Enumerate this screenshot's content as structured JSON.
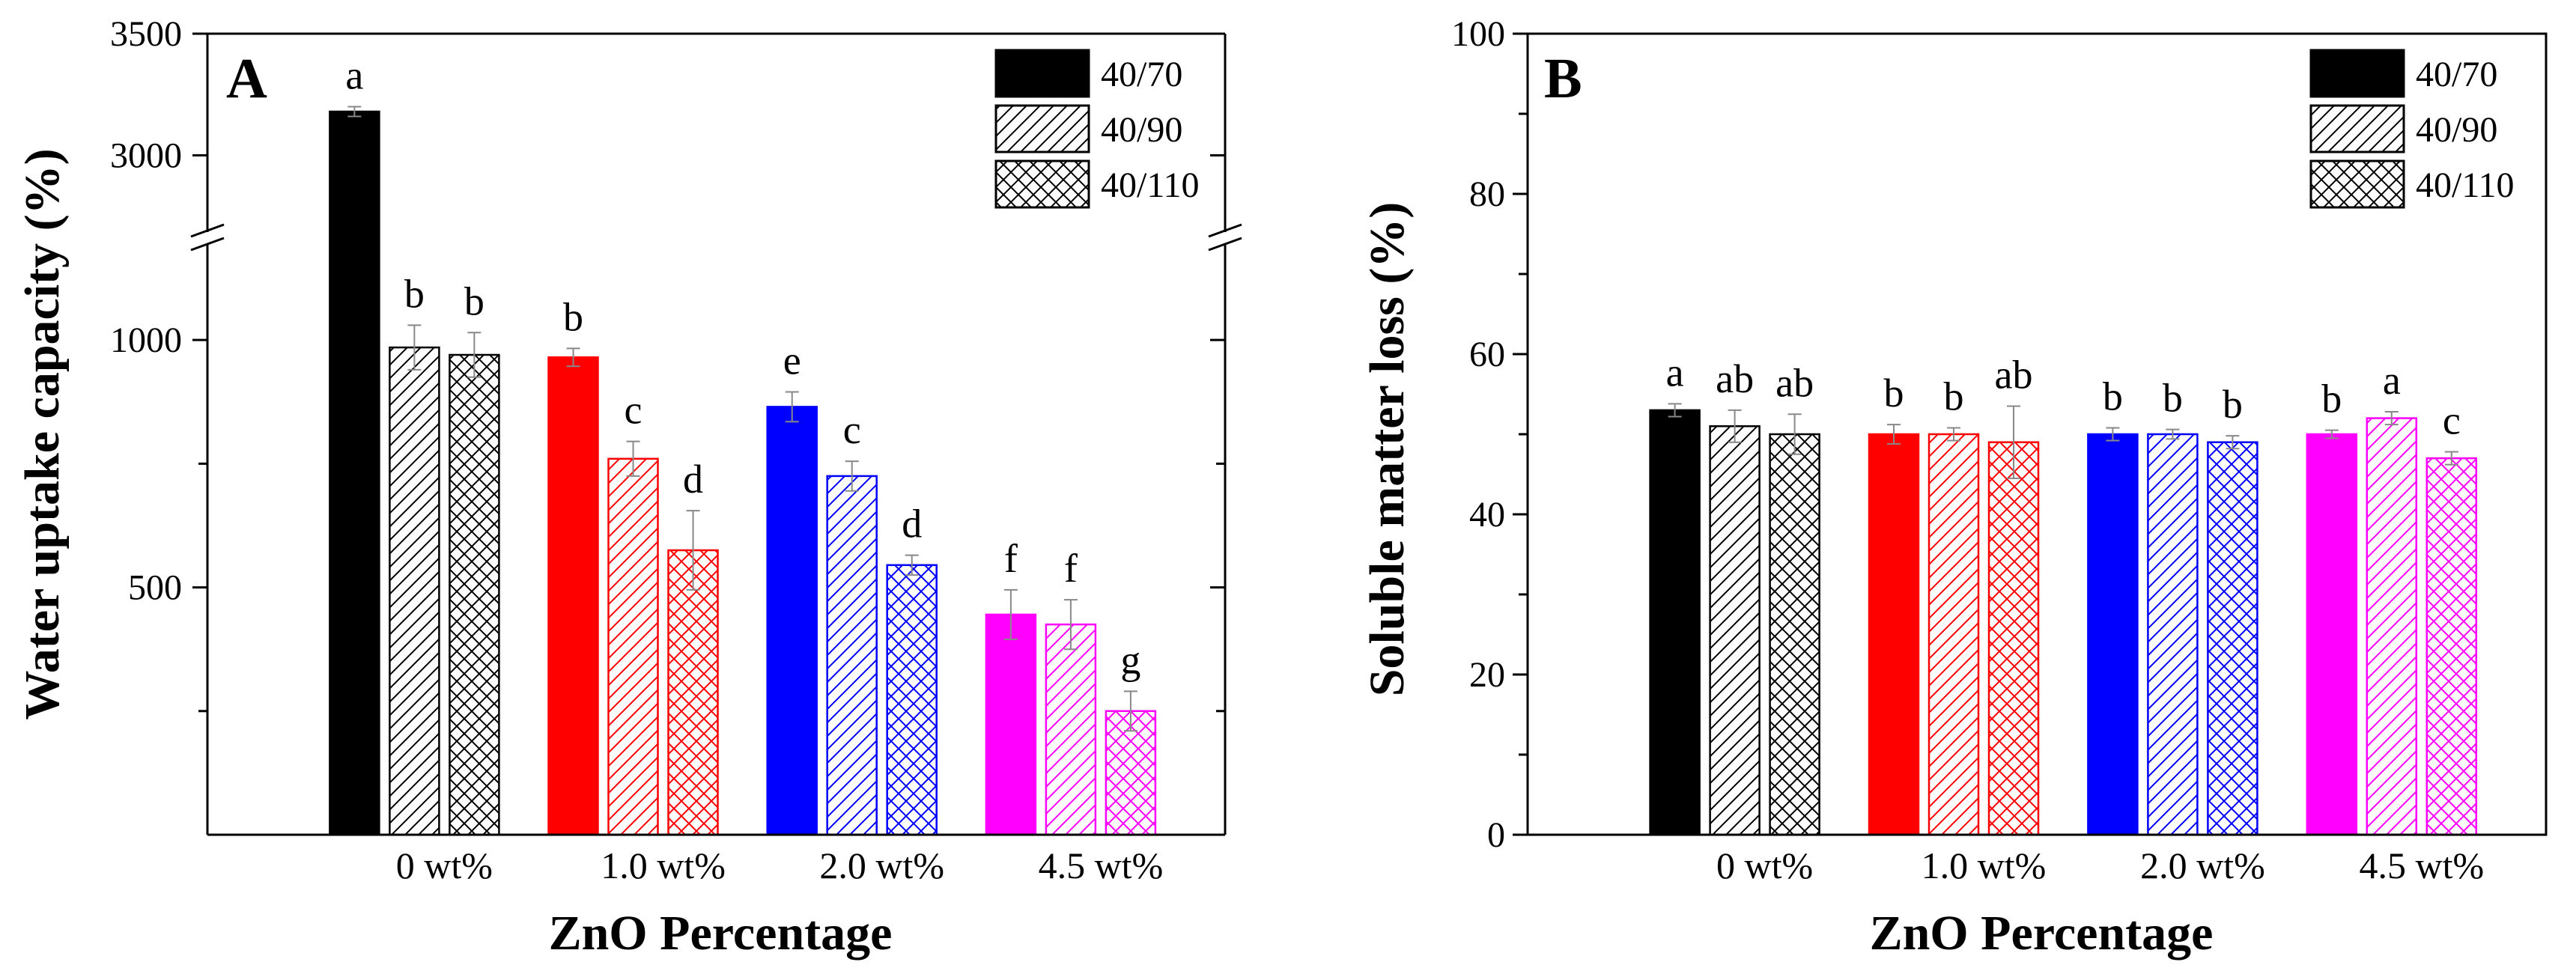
{
  "figure": {
    "legend_entries": [
      "40/70",
      "40/90",
      "40/110"
    ],
    "group_colors": [
      "#000000",
      "#ff0000",
      "#0000ff",
      "#ff00ff"
    ],
    "legend_color": "#000000"
  },
  "chart_data": [
    {
      "type": "bar",
      "panel_label": "A",
      "title": "",
      "xlabel": "ZnO Percentage",
      "ylabel": "Water uptake capacity (%)",
      "categories": [
        "0 wt%",
        "1.0 wt%",
        "2.0 wt%",
        "4.5 wt%"
      ],
      "series": [
        {
          "name": "40/70",
          "pattern": "solid",
          "values": [
            3180,
            965,
            865,
            445
          ],
          "errors": [
            20,
            18,
            30,
            50
          ],
          "labels": [
            "a",
            "b",
            "e",
            "f"
          ]
        },
        {
          "name": "40/90",
          "pattern": "diagonal-hatch",
          "values": [
            985,
            760,
            725,
            425
          ],
          "errors": [
            45,
            35,
            30,
            50
          ],
          "labels": [
            "b",
            "c",
            "c",
            "f"
          ]
        },
        {
          "name": "40/110",
          "pattern": "cross-hatch",
          "values": [
            970,
            575,
            545,
            250
          ],
          "errors": [
            45,
            80,
            20,
            40
          ],
          "labels": [
            "b",
            "d",
            "d",
            "g"
          ]
        }
      ],
      "axis_break": {
        "lower_range": [
          0,
          1200
        ],
        "upper_range": [
          2700,
          3500
        ]
      },
      "yticks_lower": [
        500,
        1000
      ],
      "yticks_upper": [
        3000,
        3500
      ],
      "grid": false,
      "legend_position": "top-right"
    },
    {
      "type": "bar",
      "panel_label": "B",
      "title": "",
      "xlabel": "ZnO Percentage",
      "ylabel": "Soluble matter loss (%)",
      "categories": [
        "0 wt%",
        "1.0 wt%",
        "2.0 wt%",
        "4.5 wt%"
      ],
      "series": [
        {
          "name": "40/70",
          "pattern": "solid",
          "values": [
            53,
            50,
            50,
            50
          ],
          "errors": [
            0.8,
            1.2,
            0.8,
            0.5
          ],
          "labels": [
            "a",
            "b",
            "b",
            "b"
          ]
        },
        {
          "name": "40/90",
          "pattern": "diagonal-hatch",
          "values": [
            51,
            50,
            50,
            52
          ],
          "errors": [
            2.0,
            0.8,
            0.6,
            0.8
          ],
          "labels": [
            "ab",
            "b",
            "b",
            "a"
          ]
        },
        {
          "name": "40/110",
          "pattern": "cross-hatch",
          "values": [
            50,
            49,
            49,
            47
          ],
          "errors": [
            2.5,
            4.5,
            0.8,
            0.8
          ],
          "labels": [
            "ab",
            "ab",
            "b",
            "c"
          ]
        }
      ],
      "ylim": [
        0,
        100
      ],
      "yticks": [
        0,
        20,
        40,
        60,
        80,
        100
      ],
      "grid": false,
      "legend_position": "top-right"
    }
  ]
}
